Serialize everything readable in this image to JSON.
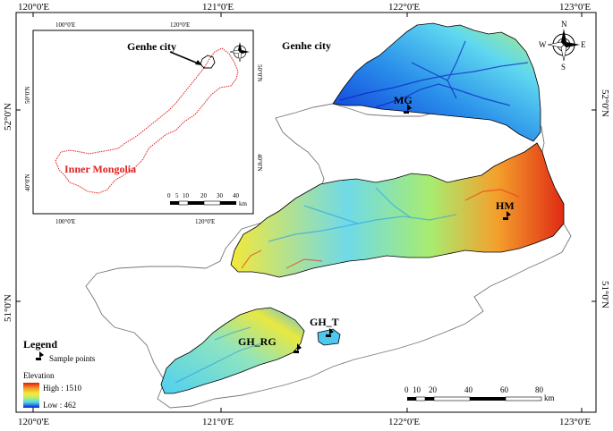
{
  "frame": {
    "top_lon_ticks": [
      "120°0'E",
      "121°0'E",
      "122°0'E",
      "123°0'E"
    ],
    "bottom_lon_ticks": [
      "120°0'E",
      "121°0'E",
      "122°0'E",
      "123°0'E"
    ],
    "left_lat_ticks": [
      "52°0'N",
      "51°0'N"
    ],
    "right_lat_ticks": [
      "52°0'N",
      "51°0'N"
    ]
  },
  "main_map": {
    "city_label": "Genhe city",
    "sites": [
      {
        "code": "MG"
      },
      {
        "code": "HM"
      },
      {
        "code": "GH_T",
        "label": "GH_T"
      },
      {
        "code": "GH_RG",
        "label": "GH_RG"
      }
    ],
    "scale_bar": {
      "labels": [
        "0",
        "10",
        "20",
        "40",
        "60",
        "80"
      ],
      "unit": "km"
    }
  },
  "inset": {
    "top_lon_ticks": [
      "100°0'E",
      "120°0'E"
    ],
    "bottom_lon_ticks": [
      "100°0'E",
      "120°0'E"
    ],
    "left_lat_ticks": [
      "50°0'N",
      "40°0'N"
    ],
    "right_lat_ticks": [
      "50°0'N",
      "40°0'N"
    ],
    "city_label": "Genhe city",
    "region_label": "Inner Mongolia",
    "region_color": "#e02020",
    "scale_bar": {
      "labels": [
        "0",
        "5",
        "10",
        "20",
        "30",
        "40"
      ],
      "unit": "km"
    }
  },
  "compass": {
    "n": "N",
    "s": "S",
    "e": "E",
    "w": "W"
  },
  "legend": {
    "title": "Legend",
    "sample_points_label": "Sample points",
    "elevation_title": "Elevation",
    "high_label": "High : 1510",
    "low_label": "Low : 462",
    "ramp_colors": [
      "#0a1fd0",
      "#1f8fe8",
      "#4fd6f0",
      "#b8ef6a",
      "#f4e83a",
      "#f49a28",
      "#e01a10"
    ]
  }
}
